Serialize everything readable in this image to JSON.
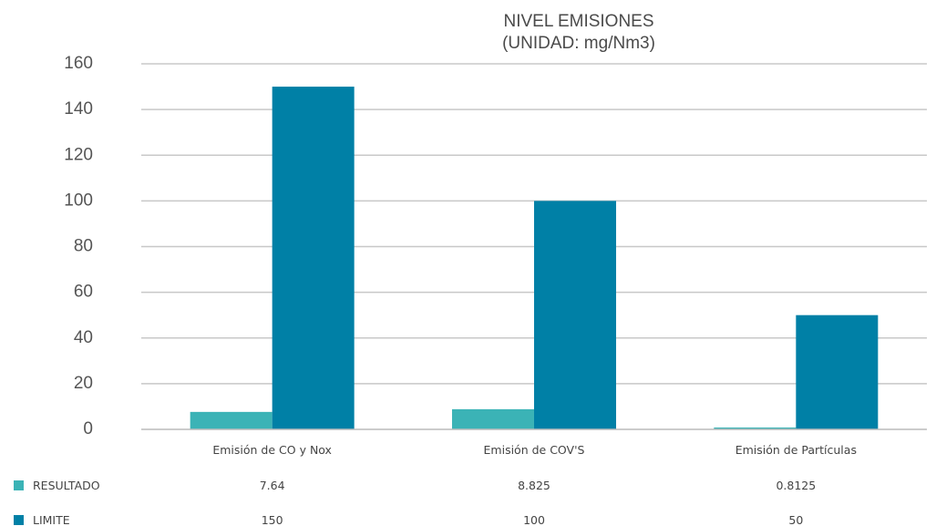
{
  "chart_data": {
    "type": "bar",
    "title": "NIVEL EMISIONES",
    "subtitle": "(UNIDAD: mg/Nm3)",
    "categories": [
      "Emisión de CO y Nox",
      "Emisión de COV'S",
      "Emisión de Partículas"
    ],
    "series": [
      {
        "name": "RESULTADO",
        "values": [
          7.64,
          8.825,
          0.8125
        ],
        "color": "#3bb3b6"
      },
      {
        "name": "LIMITE",
        "values": [
          150,
          100,
          50
        ],
        "color": "#0080a6"
      }
    ],
    "value_labels": {
      "RESULTADO": [
        "7.64",
        "8.825",
        "0.8125"
      ],
      "LIMITE": [
        "150",
        "100",
        "50"
      ]
    },
    "yticks": [
      "0",
      "20",
      "40",
      "60",
      "80",
      "100",
      "120",
      "140",
      "160"
    ],
    "ylim": [
      0,
      160
    ],
    "grid": true,
    "legend_placement": "bottom-left data table"
  }
}
